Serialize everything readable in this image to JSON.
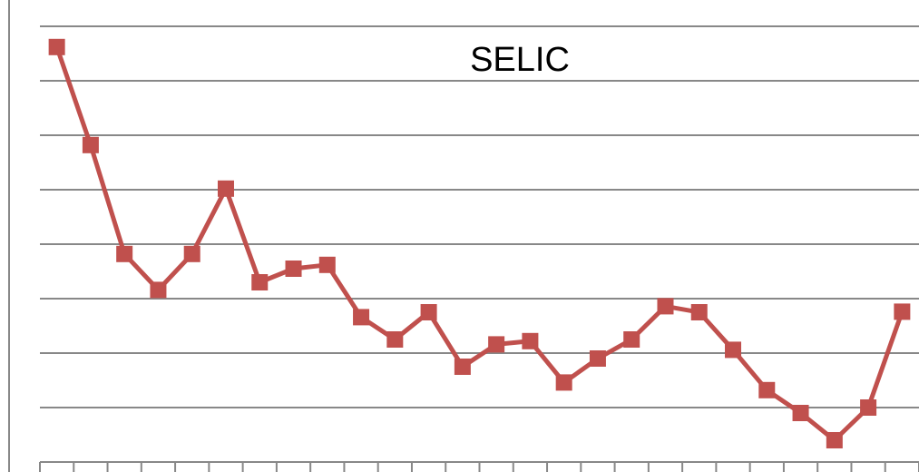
{
  "chart_data": {
    "type": "line",
    "title": "SELIC",
    "categories": [
      null,
      null,
      null,
      null,
      null,
      null,
      null,
      null,
      null,
      null,
      null,
      null,
      null,
      null,
      null,
      null,
      null,
      null,
      null,
      null,
      null,
      null,
      null,
      null,
      null,
      null
    ],
    "series": [
      {
        "color": "#c0504d",
        "values": [
          38.1,
          29.1,
          19.1,
          15.8,
          19.1,
          25.1,
          16.5,
          17.75,
          18.1,
          13.3,
          11.25,
          13.75,
          8.75,
          10.8,
          11.1,
          7.3,
          9.5,
          11.25,
          14.3,
          13.75,
          10.3,
          6.6,
          4.5,
          2.0,
          5.0,
          13.8
        ]
      }
    ],
    "ylim": [
      0,
      40
    ],
    "yticks": [
      0,
      5,
      10,
      15,
      20,
      25,
      30,
      35,
      40
    ],
    "grid": true
  }
}
